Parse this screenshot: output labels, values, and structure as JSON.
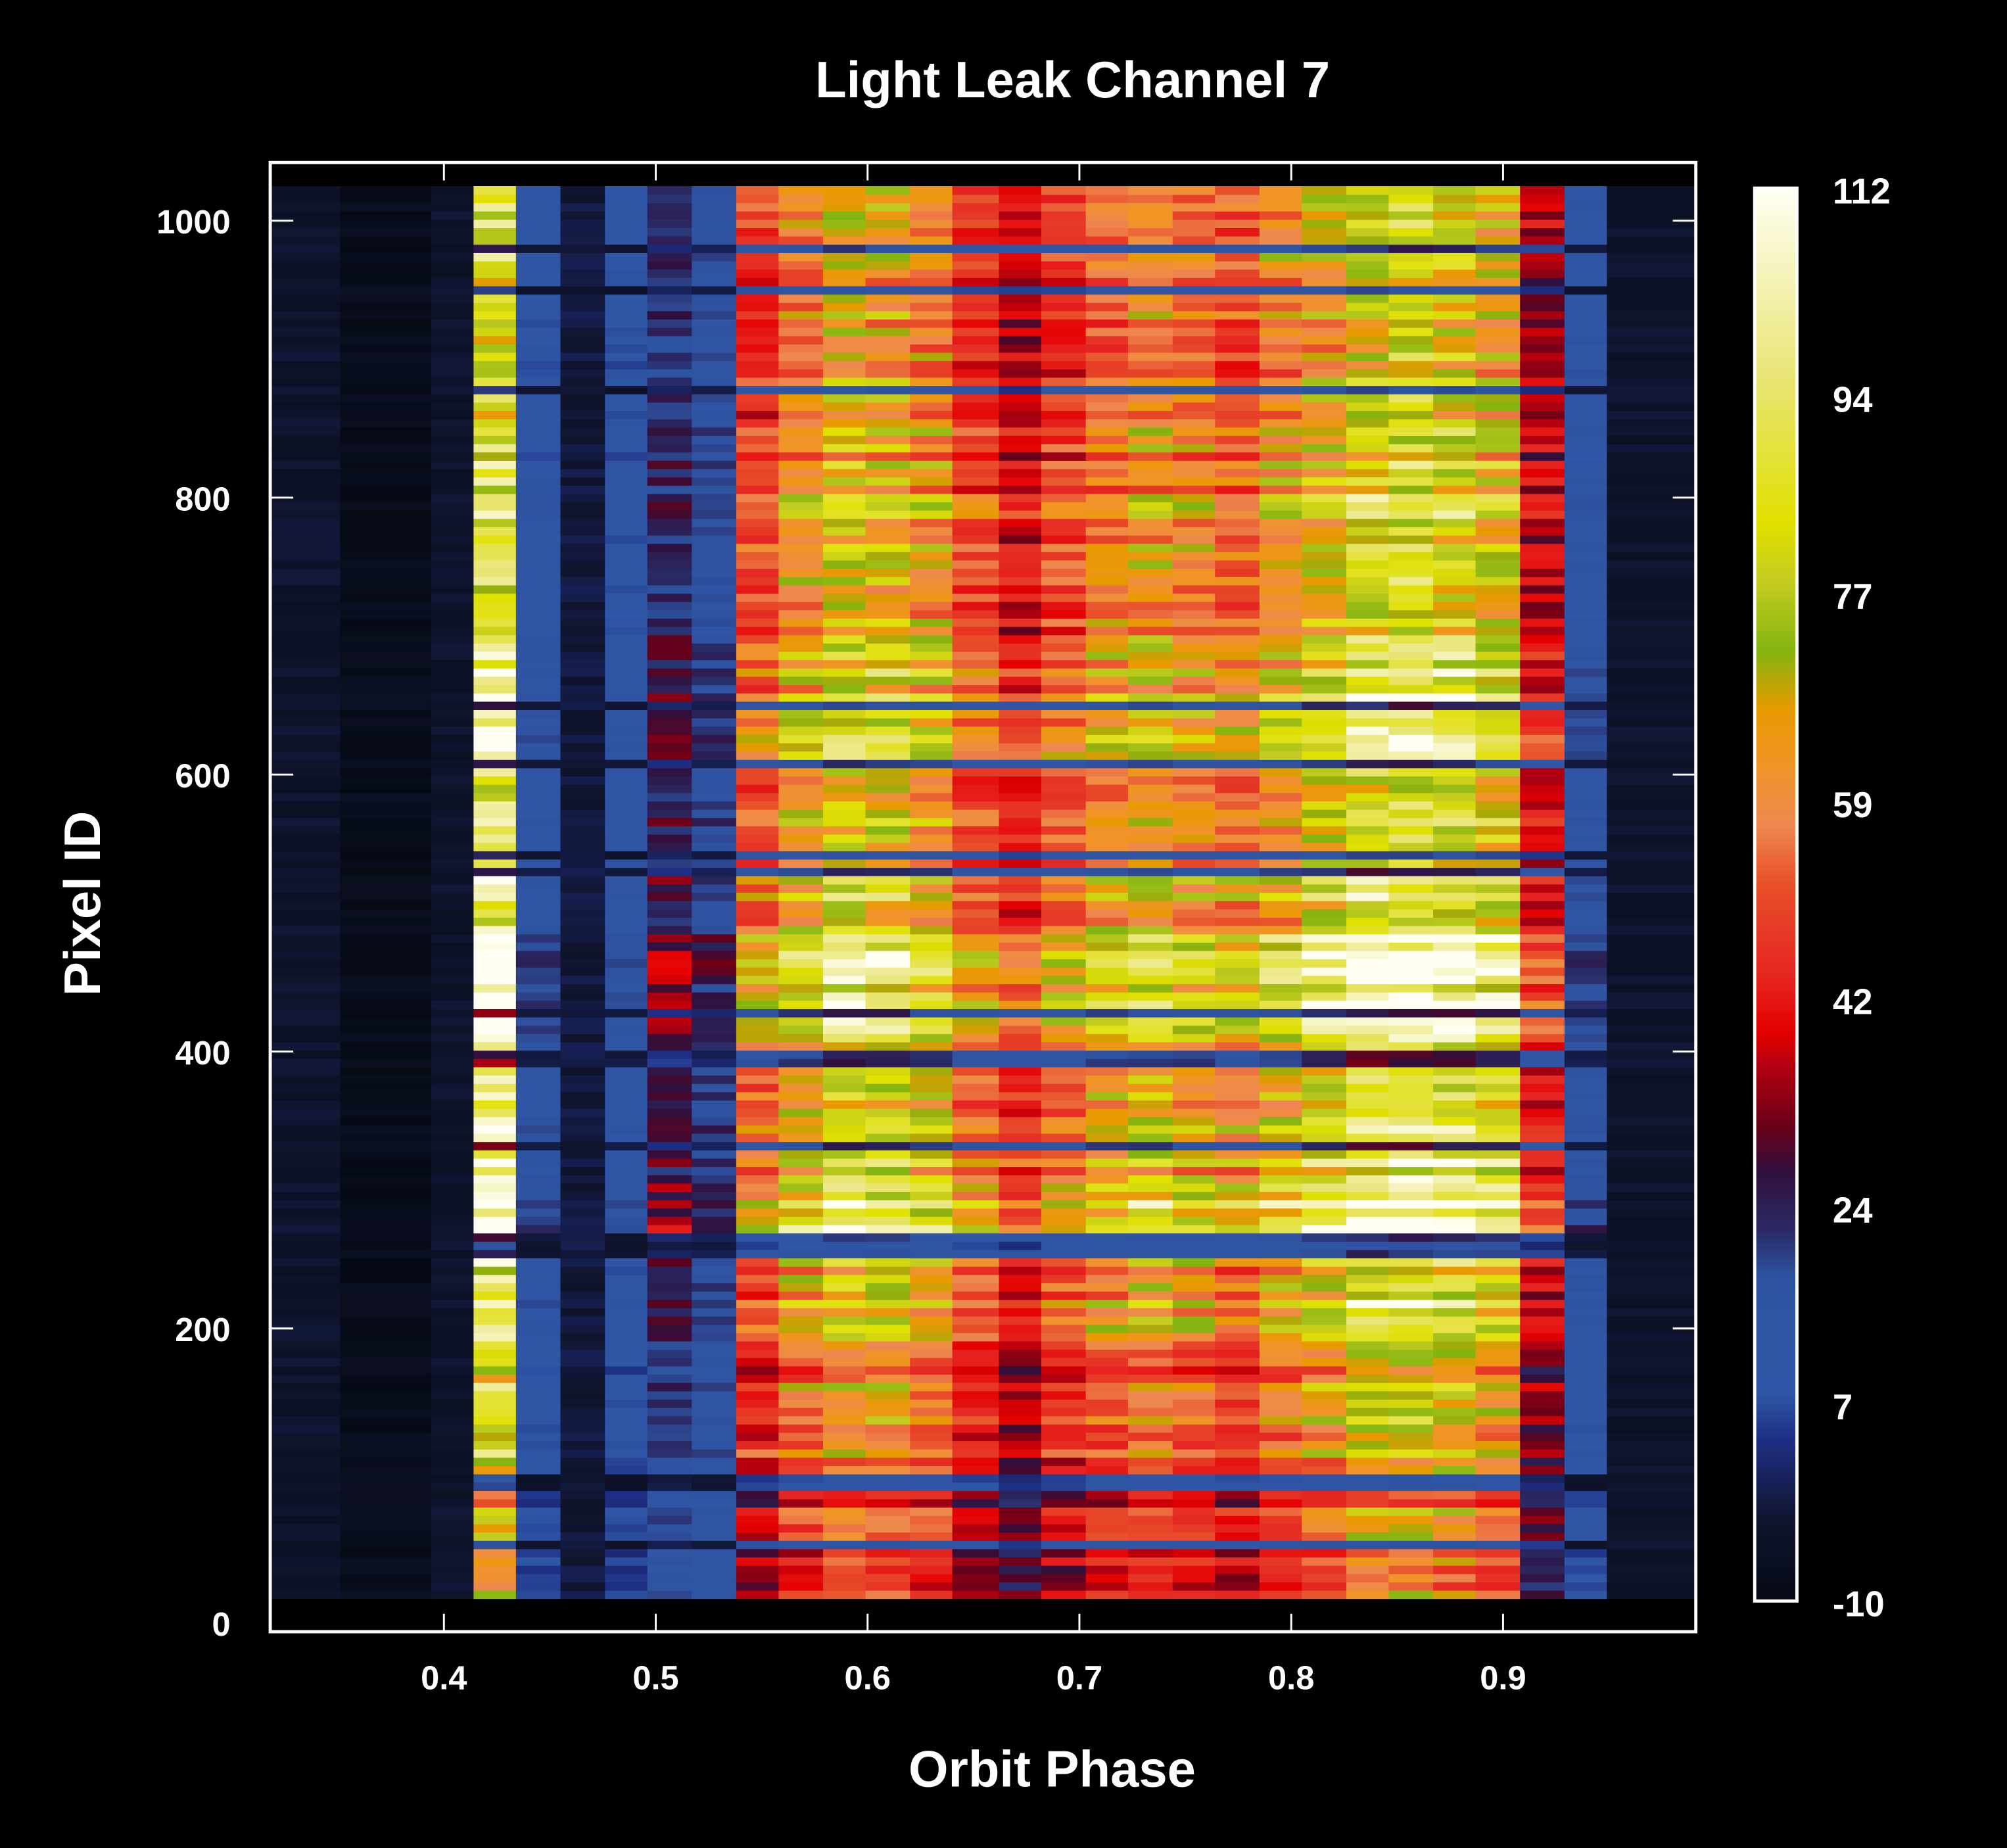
{
  "chart_data": {
    "type": "heatmap",
    "title": "Light Leak Channel 7",
    "xlabel": "Orbit Phase",
    "ylabel": "Pixel ID",
    "xlim": [
      0.318,
      0.991
    ],
    "ylim": [
      -19,
      1042
    ],
    "xticks": [
      0.4,
      0.5,
      0.6,
      0.7,
      0.8,
      0.9
    ],
    "xtick_labels": [
      "0.4",
      "0.5",
      "0.6",
      "0.7",
      "0.8",
      "0.9"
    ],
    "yticks": [
      0,
      200,
      400,
      600,
      800,
      1000
    ],
    "ytick_labels": [
      "0",
      "200",
      "400",
      "600",
      "800",
      "1000"
    ],
    "pixel_id_range": [
      5,
      1023
    ],
    "columns": [
      {
        "phase_start": 0.318,
        "phase_end": 0.351,
        "value": -4
      },
      {
        "phase_start": 0.351,
        "phase_end": 0.394,
        "value": -8
      },
      {
        "phase_start": 0.394,
        "phase_end": 0.414,
        "value": -4
      },
      {
        "phase_start": 0.414,
        "phase_end": 0.434,
        "value": 98
      },
      {
        "phase_start": 0.434,
        "phase_end": 0.455,
        "value": 14
      },
      {
        "phase_start": 0.455,
        "phase_end": 0.476,
        "value": -2
      },
      {
        "phase_start": 0.476,
        "phase_end": 0.496,
        "value": 12
      },
      {
        "phase_start": 0.496,
        "phase_end": 0.517,
        "value": 27
      },
      {
        "phase_start": 0.517,
        "phase_end": 0.538,
        "value": 20
      },
      {
        "phase_start": 0.538,
        "phase_end": 0.558,
        "value": 55
      },
      {
        "phase_start": 0.558,
        "phase_end": 0.579,
        "value": 68
      },
      {
        "phase_start": 0.579,
        "phase_end": 0.599,
        "value": 80
      },
      {
        "phase_start": 0.599,
        "phase_end": 0.62,
        "value": 78
      },
      {
        "phase_start": 0.62,
        "phase_end": 0.64,
        "value": 70
      },
      {
        "phase_start": 0.64,
        "phase_end": 0.662,
        "value": 55
      },
      {
        "phase_start": 0.662,
        "phase_end": 0.682,
        "value": 45
      },
      {
        "phase_start": 0.682,
        "phase_end": 0.703,
        "value": 55
      },
      {
        "phase_start": 0.703,
        "phase_end": 0.723,
        "value": 65
      },
      {
        "phase_start": 0.723,
        "phase_end": 0.744,
        "value": 70
      },
      {
        "phase_start": 0.744,
        "phase_end": 0.764,
        "value": 65
      },
      {
        "phase_start": 0.764,
        "phase_end": 0.785,
        "value": 60
      },
      {
        "phase_start": 0.785,
        "phase_end": 0.805,
        "value": 70
      },
      {
        "phase_start": 0.805,
        "phase_end": 0.826,
        "value": 78
      },
      {
        "phase_start": 0.826,
        "phase_end": 0.846,
        "value": 90
      },
      {
        "phase_start": 0.846,
        "phase_end": 0.867,
        "value": 93
      },
      {
        "phase_start": 0.867,
        "phase_end": 0.887,
        "value": 88
      },
      {
        "phase_start": 0.887,
        "phase_end": 0.908,
        "value": 80
      },
      {
        "phase_start": 0.908,
        "phase_end": 0.929,
        "value": 42
      },
      {
        "phase_start": 0.929,
        "phase_end": 0.949,
        "value": 15
      },
      {
        "phase_start": 0.949,
        "phase_end": 0.991,
        "value": -4
      }
    ],
    "row_bands": [
      {
        "from": 5,
        "to": 100,
        "factor": 0.72
      },
      {
        "from": 100,
        "to": 180,
        "factor": 0.85
      },
      {
        "from": 180,
        "to": 250,
        "factor": 1.0
      },
      {
        "from": 250,
        "to": 266,
        "factor": 0.3
      },
      {
        "from": 266,
        "to": 300,
        "factor": 1.2
      },
      {
        "from": 300,
        "to": 400,
        "factor": 1.05
      },
      {
        "from": 400,
        "to": 480,
        "factor": 1.15
      },
      {
        "from": 480,
        "to": 600,
        "factor": 1.0
      },
      {
        "from": 600,
        "to": 700,
        "factor": 1.05
      },
      {
        "from": 700,
        "to": 800,
        "factor": 0.95
      },
      {
        "from": 800,
        "to": 900,
        "factor": 0.9
      },
      {
        "from": 900,
        "to": 1023,
        "factor": 0.85
      }
    ],
    "colorbar": {
      "range": [
        -10,
        112
      ],
      "tick_labels": [
        "112",
        "94",
        "77",
        "59",
        "42",
        "24",
        "7",
        "-10"
      ],
      "ticks": [
        112,
        94,
        77,
        59,
        42,
        24,
        7,
        -10
      ],
      "stops": [
        {
          "v": -10,
          "c": "#050a14"
        },
        {
          "v": -3,
          "c": "#10142e"
        },
        {
          "v": 4,
          "c": "#1f2f86"
        },
        {
          "v": 8,
          "c": "#2f57a6"
        },
        {
          "v": 18,
          "c": "#2e52a0"
        },
        {
          "v": 22,
          "c": "#2a2a66"
        },
        {
          "v": 27,
          "c": "#30103e"
        },
        {
          "v": 31,
          "c": "#6a0018"
        },
        {
          "v": 36,
          "c": "#b00010"
        },
        {
          "v": 39,
          "c": "#e40000"
        },
        {
          "v": 44,
          "c": "#e52522"
        },
        {
          "v": 52,
          "c": "#e8502a"
        },
        {
          "v": 57,
          "c": "#ee8850"
        },
        {
          "v": 62,
          "c": "#f09428"
        },
        {
          "v": 67,
          "c": "#e89a00"
        },
        {
          "v": 72,
          "c": "#84b410"
        },
        {
          "v": 78,
          "c": "#c4cc20"
        },
        {
          "v": 83,
          "c": "#e0e000"
        },
        {
          "v": 95,
          "c": "#e8e470"
        },
        {
          "v": 112,
          "c": "#fffff4"
        }
      ]
    }
  }
}
